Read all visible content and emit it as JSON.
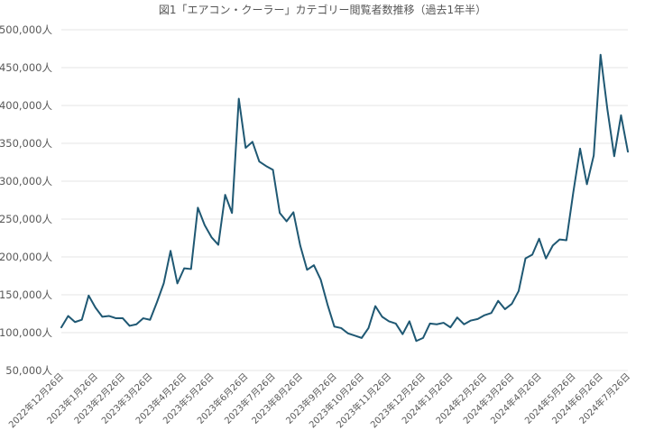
{
  "chart_data": {
    "type": "line",
    "title": "図1「エアコン・クーラー」カテゴリー閲覧者数推移（過去1年半）",
    "xlabel": "",
    "ylabel": "",
    "ylim": [
      50000,
      500000
    ],
    "grid": true,
    "legend": "none",
    "colors": {
      "line": "#1f5873",
      "grid": "#e6e6e6",
      "text": "#595959"
    },
    "yticks": [
      {
        "value": 500000,
        "label": "500,000人"
      },
      {
        "value": 450000,
        "label": "450,000人"
      },
      {
        "value": 400000,
        "label": "400,000人"
      },
      {
        "value": 350000,
        "label": "350,000人"
      },
      {
        "value": 300000,
        "label": "300,000人"
      },
      {
        "value": 250000,
        "label": "250,000人"
      },
      {
        "value": 200000,
        "label": "200,000人"
      },
      {
        "value": 150000,
        "label": "150,000人"
      },
      {
        "value": 100000,
        "label": "100,000人"
      },
      {
        "value": 50000,
        "label": "50,000人"
      }
    ],
    "xticks": [
      {
        "index": 0,
        "label": "2022年12月26日"
      },
      {
        "index": 5,
        "label": "2023年1月26日"
      },
      {
        "index": 9,
        "label": "2023年2月26日"
      },
      {
        "index": 13,
        "label": "2023年3月26日"
      },
      {
        "index": 18,
        "label": "2023年4月26日"
      },
      {
        "index": 22,
        "label": "2023年5月26日"
      },
      {
        "index": 27,
        "label": "2023年6月26日"
      },
      {
        "index": 31,
        "label": "2023年7月26日"
      },
      {
        "index": 35,
        "label": "2023年8月26日"
      },
      {
        "index": 40,
        "label": "2023年9月26日"
      },
      {
        "index": 44,
        "label": "2023年10月26日"
      },
      {
        "index": 48,
        "label": "2023年11月26日"
      },
      {
        "index": 53,
        "label": "2023年12月26日"
      },
      {
        "index": 57,
        "label": "2024年1月26日"
      },
      {
        "index": 62,
        "label": "2024年2月26日"
      },
      {
        "index": 66,
        "label": "2024年3月26日"
      },
      {
        "index": 70,
        "label": "2024年4月26日"
      },
      {
        "index": 75,
        "label": "2024年5月26日"
      },
      {
        "index": 79,
        "label": "2024年6月26日"
      },
      {
        "index": 83,
        "label": "2024年7月26日"
      }
    ],
    "values": [
      107000,
      122000,
      114000,
      117000,
      149000,
      133000,
      121000,
      122000,
      119000,
      119000,
      109000,
      111000,
      119000,
      117000,
      140000,
      165000,
      208000,
      165000,
      185000,
      184000,
      265000,
      242000,
      226000,
      216000,
      282000,
      258000,
      409000,
      344000,
      352000,
      326000,
      320000,
      315000,
      258000,
      247000,
      259000,
      215000,
      183000,
      189000,
      170000,
      137000,
      108000,
      106000,
      99000,
      96000,
      93000,
      106000,
      135000,
      121000,
      115000,
      112000,
      98000,
      115000,
      89000,
      93000,
      112000,
      111000,
      113000,
      107000,
      120000,
      111000,
      116000,
      118000,
      123000,
      126000,
      142000,
      131000,
      138000,
      155000,
      198000,
      203000,
      224000,
      198000,
      215000,
      223000,
      222000,
      285000,
      343000,
      296000,
      334000,
      467000,
      395000,
      333000,
      387000,
      339000
    ]
  }
}
